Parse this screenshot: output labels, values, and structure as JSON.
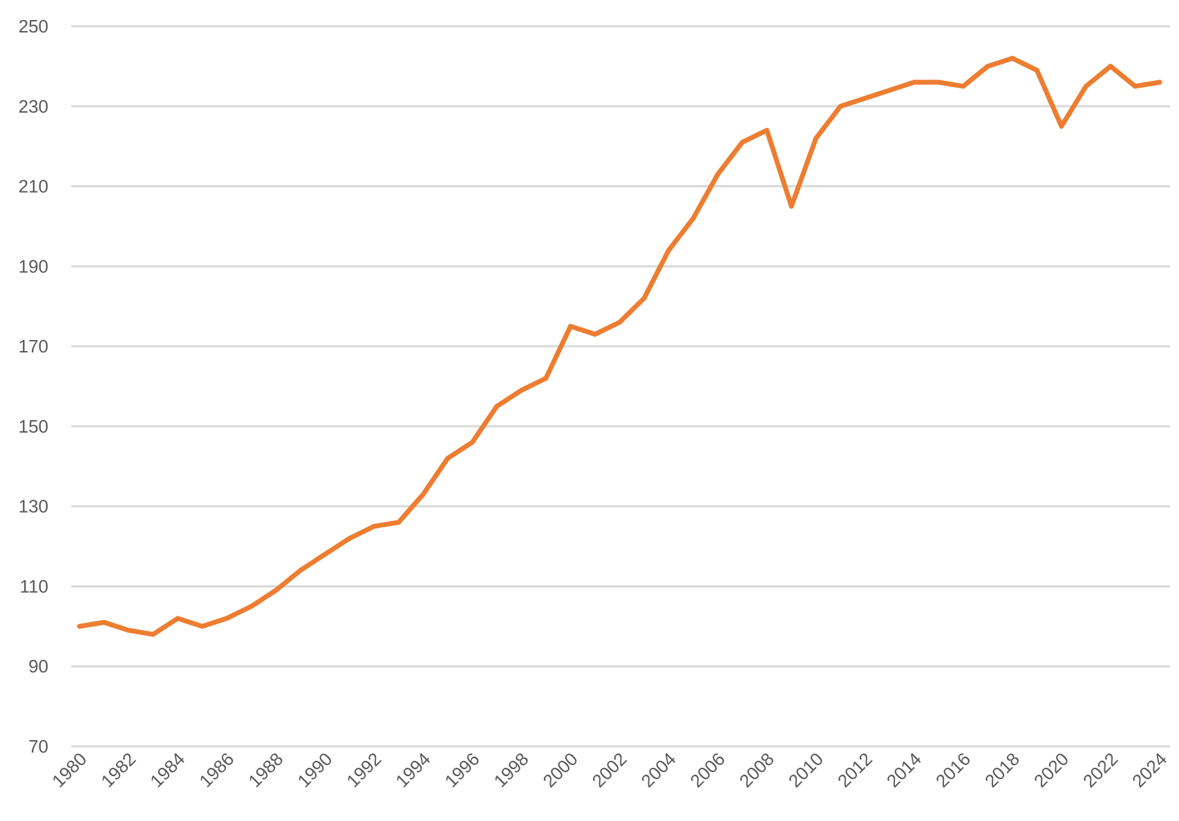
{
  "chart_data": {
    "type": "line",
    "title": "",
    "xlabel": "",
    "ylabel": "",
    "ylim": [
      70,
      250
    ],
    "y_ticks": [
      70,
      90,
      110,
      130,
      150,
      170,
      190,
      210,
      230,
      250
    ],
    "x_tick_labels": [
      "1980",
      "1982",
      "1984",
      "1986",
      "1988",
      "1990",
      "1992",
      "1994",
      "1996",
      "1998",
      "2000",
      "2002",
      "2004",
      "2006",
      "2008",
      "2010",
      "2012",
      "2014",
      "2016",
      "2018",
      "2020",
      "2022",
      "2024"
    ],
    "grid": true,
    "legend": "none",
    "line_color": "#ED7D31",
    "series": [
      {
        "x": [
          1980,
          1981,
          1982,
          1983,
          1984,
          1985,
          1986,
          1987,
          1988,
          1989,
          1990,
          1991,
          1992,
          1993,
          1994,
          1995,
          1996,
          1997,
          1998,
          1999,
          2000,
          2001,
          2002,
          2003,
          2004,
          2005,
          2006,
          2007,
          2008,
          2009,
          2010,
          2011,
          2012,
          2013,
          2014,
          2015,
          2016,
          2017,
          2018,
          2019,
          2020,
          2021,
          2022,
          2023,
          2024
        ],
        "values": [
          100,
          101,
          99,
          98,
          102,
          100,
          102,
          105,
          109,
          114,
          118,
          122,
          125,
          126,
          133,
          142,
          146,
          155,
          159,
          162,
          175,
          173,
          176,
          182,
          194,
          202,
          213,
          221,
          224,
          205,
          222,
          230,
          232,
          234,
          236,
          236,
          235,
          240,
          242,
          239,
          225,
          235,
          240,
          235,
          236
        ]
      }
    ]
  }
}
